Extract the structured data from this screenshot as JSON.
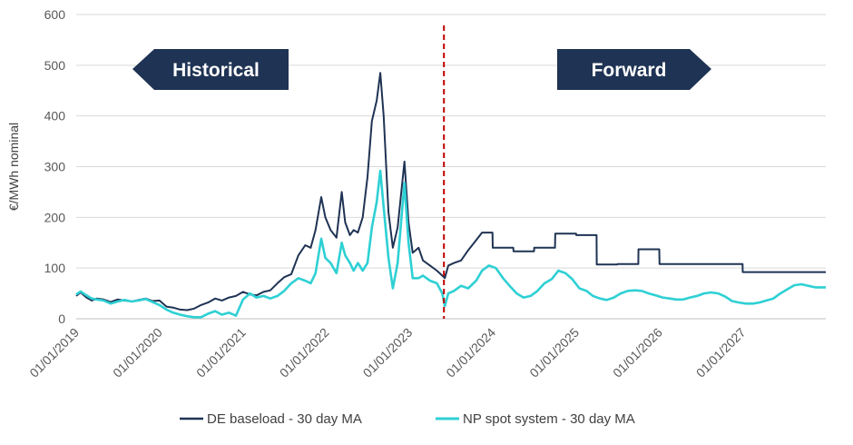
{
  "chart_data": {
    "type": "line",
    "ylabel": "€/MWh nominal",
    "ylim": [
      0,
      600
    ],
    "yticks": [
      "0",
      "100",
      "200",
      "300",
      "400",
      "500",
      "600"
    ],
    "xlim": [
      "2019-01-01",
      "2027-12-31"
    ],
    "xticks": [
      "01/01/2019",
      "01/01/2020",
      "01/01/2021",
      "01/01/2022",
      "01/01/2023",
      "01/01/2024",
      "01/01/2025",
      "01/01/2026",
      "01/01/2027"
    ],
    "grid": "horizontal",
    "legend": "bottom",
    "divider_date": "2023-06-01",
    "annotations": {
      "historical": "Historical",
      "forward": "Forward"
    },
    "series": [
      {
        "name": "DE baseload - 30 day MA",
        "color": "#1f3354",
        "points": [
          [
            "2019-01-01",
            45
          ],
          [
            "2019-01-20",
            52
          ],
          [
            "2019-02-15",
            42
          ],
          [
            "2019-03-10",
            36
          ],
          [
            "2019-04-01",
            40
          ],
          [
            "2019-05-01",
            38
          ],
          [
            "2019-06-01",
            33
          ],
          [
            "2019-07-01",
            38
          ],
          [
            "2019-08-01",
            36
          ],
          [
            "2019-09-01",
            34
          ],
          [
            "2019-10-01",
            37
          ],
          [
            "2019-11-01",
            40
          ],
          [
            "2019-12-01",
            35
          ],
          [
            "2020-01-01",
            36
          ],
          [
            "2020-02-01",
            24
          ],
          [
            "2020-03-01",
            22
          ],
          [
            "2020-04-01",
            18
          ],
          [
            "2020-05-01",
            17
          ],
          [
            "2020-06-01",
            20
          ],
          [
            "2020-07-01",
            27
          ],
          [
            "2020-08-01",
            32
          ],
          [
            "2020-09-01",
            40
          ],
          [
            "2020-10-01",
            36
          ],
          [
            "2020-11-01",
            42
          ],
          [
            "2020-12-01",
            45
          ],
          [
            "2021-01-01",
            53
          ],
          [
            "2021-02-01",
            48
          ],
          [
            "2021-03-01",
            46
          ],
          [
            "2021-04-01",
            53
          ],
          [
            "2021-05-01",
            56
          ],
          [
            "2021-06-01",
            70
          ],
          [
            "2021-07-01",
            82
          ],
          [
            "2021-08-01",
            88
          ],
          [
            "2021-09-01",
            125
          ],
          [
            "2021-10-01",
            145
          ],
          [
            "2021-10-25",
            140
          ],
          [
            "2021-11-15",
            175
          ],
          [
            "2021-12-10",
            240
          ],
          [
            "2021-12-28",
            200
          ],
          [
            "2022-01-20",
            175
          ],
          [
            "2022-02-15",
            160
          ],
          [
            "2022-03-10",
            250
          ],
          [
            "2022-03-25",
            190
          ],
          [
            "2022-04-15",
            165
          ],
          [
            "2022-05-01",
            175
          ],
          [
            "2022-05-20",
            170
          ],
          [
            "2022-06-10",
            200
          ],
          [
            "2022-07-01",
            280
          ],
          [
            "2022-07-20",
            390
          ],
          [
            "2022-08-10",
            430
          ],
          [
            "2022-08-26",
            485
          ],
          [
            "2022-09-10",
            400
          ],
          [
            "2022-10-01",
            210
          ],
          [
            "2022-10-20",
            140
          ],
          [
            "2022-11-10",
            180
          ],
          [
            "2022-12-10",
            310
          ],
          [
            "2022-12-28",
            190
          ],
          [
            "2023-01-15",
            130
          ],
          [
            "2023-02-10",
            140
          ],
          [
            "2023-03-01",
            115
          ],
          [
            "2023-04-01",
            105
          ],
          [
            "2023-05-01",
            95
          ],
          [
            "2023-05-25",
            85
          ],
          [
            "2023-06-05",
            80
          ],
          [
            "2023-06-20",
            105
          ],
          [
            "2023-07-15",
            110
          ],
          [
            "2023-08-15",
            115
          ],
          [
            "2023-09-15",
            135
          ],
          [
            "2023-10-20",
            155
          ],
          [
            "2023-11-15",
            170
          ],
          [
            "2023-12-31",
            170
          ],
          [
            "2024-01-01",
            140
          ],
          [
            "2024-03-31",
            140
          ],
          [
            "2024-04-01",
            133
          ],
          [
            "2024-06-30",
            133
          ],
          [
            "2024-07-01",
            140
          ],
          [
            "2024-09-30",
            140
          ],
          [
            "2024-10-01",
            168
          ],
          [
            "2024-12-31",
            168
          ],
          [
            "2025-01-01",
            165
          ],
          [
            "2025-03-31",
            165
          ],
          [
            "2025-04-01",
            107
          ],
          [
            "2025-06-30",
            107
          ],
          [
            "2025-07-01",
            108
          ],
          [
            "2025-09-30",
            108
          ],
          [
            "2025-10-01",
            137
          ],
          [
            "2025-12-31",
            137
          ],
          [
            "2026-01-01",
            108
          ],
          [
            "2026-12-31",
            108
          ],
          [
            "2027-01-01",
            92
          ],
          [
            "2027-12-31",
            92
          ]
        ]
      },
      {
        "name": "NP spot system - 30 day MA",
        "color": "#2ed0d4",
        "points": [
          [
            "2019-01-01",
            48
          ],
          [
            "2019-01-20",
            54
          ],
          [
            "2019-02-15",
            46
          ],
          [
            "2019-03-10",
            40
          ],
          [
            "2019-04-01",
            38
          ],
          [
            "2019-05-01",
            36
          ],
          [
            "2019-06-01",
            30
          ],
          [
            "2019-07-01",
            34
          ],
          [
            "2019-08-01",
            37
          ],
          [
            "2019-09-01",
            34
          ],
          [
            "2019-10-01",
            36
          ],
          [
            "2019-11-01",
            39
          ],
          [
            "2019-12-01",
            33
          ],
          [
            "2020-01-01",
            27
          ],
          [
            "2020-02-01",
            18
          ],
          [
            "2020-03-01",
            12
          ],
          [
            "2020-04-01",
            8
          ],
          [
            "2020-05-01",
            5
          ],
          [
            "2020-06-01",
            3
          ],
          [
            "2020-07-01",
            3
          ],
          [
            "2020-08-01",
            10
          ],
          [
            "2020-09-01",
            15
          ],
          [
            "2020-10-01",
            8
          ],
          [
            "2020-11-01",
            12
          ],
          [
            "2020-12-01",
            6
          ],
          [
            "2021-01-01",
            38
          ],
          [
            "2021-02-01",
            50
          ],
          [
            "2021-03-01",
            42
          ],
          [
            "2021-04-01",
            45
          ],
          [
            "2021-05-01",
            40
          ],
          [
            "2021-06-01",
            45
          ],
          [
            "2021-07-01",
            55
          ],
          [
            "2021-08-01",
            70
          ],
          [
            "2021-09-01",
            80
          ],
          [
            "2021-10-01",
            75
          ],
          [
            "2021-10-25",
            70
          ],
          [
            "2021-11-15",
            90
          ],
          [
            "2021-12-10",
            158
          ],
          [
            "2021-12-28",
            120
          ],
          [
            "2022-01-20",
            110
          ],
          [
            "2022-02-15",
            90
          ],
          [
            "2022-03-10",
            150
          ],
          [
            "2022-03-25",
            125
          ],
          [
            "2022-04-15",
            110
          ],
          [
            "2022-05-01",
            95
          ],
          [
            "2022-05-20",
            110
          ],
          [
            "2022-06-10",
            95
          ],
          [
            "2022-07-01",
            110
          ],
          [
            "2022-07-20",
            180
          ],
          [
            "2022-08-10",
            230
          ],
          [
            "2022-08-26",
            292
          ],
          [
            "2022-09-10",
            220
          ],
          [
            "2022-10-01",
            120
          ],
          [
            "2022-10-20",
            60
          ],
          [
            "2022-11-10",
            110
          ],
          [
            "2022-12-10",
            268
          ],
          [
            "2022-12-28",
            150
          ],
          [
            "2023-01-15",
            80
          ],
          [
            "2023-02-10",
            80
          ],
          [
            "2023-03-01",
            85
          ],
          [
            "2023-04-01",
            75
          ],
          [
            "2023-05-01",
            70
          ],
          [
            "2023-05-25",
            50
          ],
          [
            "2023-06-05",
            25
          ],
          [
            "2023-06-20",
            50
          ],
          [
            "2023-07-15",
            55
          ],
          [
            "2023-08-15",
            65
          ],
          [
            "2023-09-15",
            60
          ],
          [
            "2023-10-20",
            75
          ],
          [
            "2023-11-15",
            95
          ],
          [
            "2023-12-15",
            105
          ],
          [
            "2024-01-15",
            100
          ],
          [
            "2024-02-15",
            80
          ],
          [
            "2024-03-15",
            65
          ],
          [
            "2024-04-15",
            50
          ],
          [
            "2024-05-15",
            42
          ],
          [
            "2024-06-15",
            45
          ],
          [
            "2024-07-15",
            55
          ],
          [
            "2024-08-15",
            70
          ],
          [
            "2024-09-15",
            78
          ],
          [
            "2024-10-15",
            95
          ],
          [
            "2024-11-15",
            90
          ],
          [
            "2024-12-15",
            78
          ],
          [
            "2025-01-15",
            60
          ],
          [
            "2025-02-15",
            55
          ],
          [
            "2025-03-15",
            45
          ],
          [
            "2025-04-15",
            40
          ],
          [
            "2025-05-15",
            37
          ],
          [
            "2025-06-15",
            42
          ],
          [
            "2025-07-15",
            50
          ],
          [
            "2025-08-15",
            55
          ],
          [
            "2025-09-15",
            56
          ],
          [
            "2025-10-15",
            55
          ],
          [
            "2025-11-15",
            50
          ],
          [
            "2025-12-15",
            46
          ],
          [
            "2026-01-15",
            42
          ],
          [
            "2026-02-15",
            40
          ],
          [
            "2026-03-15",
            38
          ],
          [
            "2026-04-15",
            38
          ],
          [
            "2026-05-15",
            42
          ],
          [
            "2026-06-15",
            45
          ],
          [
            "2026-07-15",
            50
          ],
          [
            "2026-08-15",
            52
          ],
          [
            "2026-09-15",
            50
          ],
          [
            "2026-10-15",
            44
          ],
          [
            "2026-11-15",
            35
          ],
          [
            "2026-12-15",
            32
          ],
          [
            "2027-01-15",
            30
          ],
          [
            "2027-02-15",
            30
          ],
          [
            "2027-03-15",
            32
          ],
          [
            "2027-04-15",
            36
          ],
          [
            "2027-05-15",
            40
          ],
          [
            "2027-06-15",
            50
          ],
          [
            "2027-07-15",
            58
          ],
          [
            "2027-08-15",
            66
          ],
          [
            "2027-09-15",
            68
          ],
          [
            "2027-10-15",
            65
          ],
          [
            "2027-11-15",
            62
          ],
          [
            "2027-12-31",
            62
          ]
        ]
      }
    ]
  }
}
